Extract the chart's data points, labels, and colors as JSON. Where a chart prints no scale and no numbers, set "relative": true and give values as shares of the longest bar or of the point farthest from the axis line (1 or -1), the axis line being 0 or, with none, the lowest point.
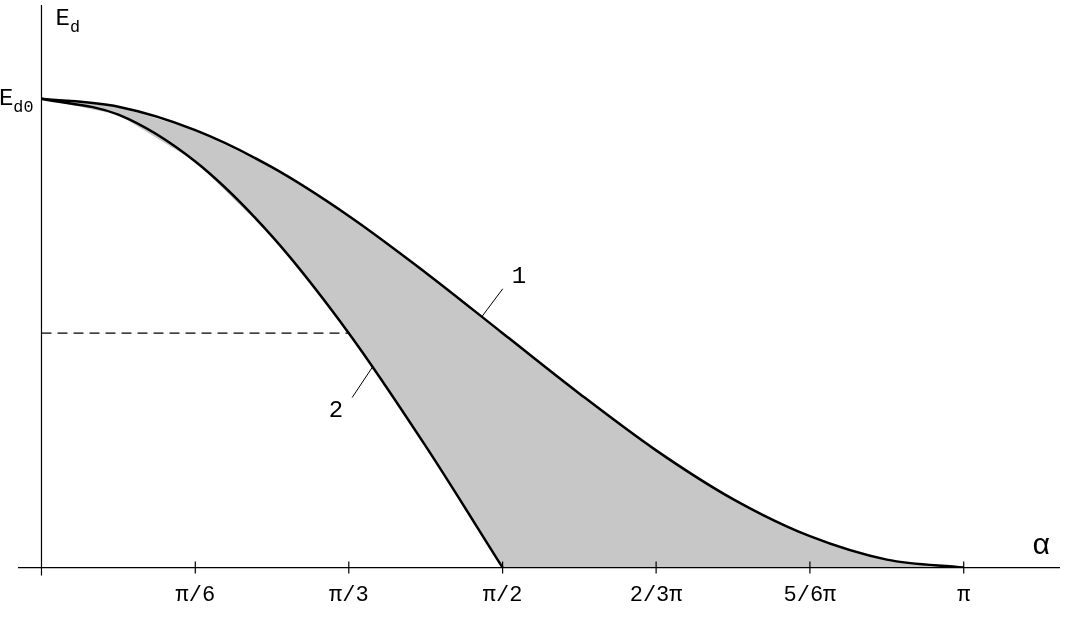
{
  "chart_data": {
    "type": "line",
    "xlabel": "α",
    "ylabel": "E$_{d}$",
    "relative": true,
    "x": [
      0,
      0.262,
      0.524,
      0.785,
      1.047,
      1.309,
      1.571,
      1.833,
      2.094,
      2.356,
      2.618,
      2.88,
      3.142
    ],
    "xlim": [
      -0.08,
      3.47
    ],
    "xticks": [
      {
        "value": 0.524,
        "label": "π/6"
      },
      {
        "value": 1.047,
        "label": "π/3"
      },
      {
        "value": 1.571,
        "label": "π/2"
      },
      {
        "value": 2.094,
        "label": "2/3π"
      },
      {
        "value": 2.618,
        "label": "5/6π"
      },
      {
        "value": 3.142,
        "label": "π"
      }
    ],
    "series": [
      {
        "color": "#000000",
        "values": [
          1,
          0.983,
          0.933,
          0.854,
          0.75,
          0.629,
          0.5,
          0.371,
          0.25,
          0.146,
          0.067,
          0.017,
          0
        ],
        "upper": [
          1,
          0.983,
          0.933,
          0.854,
          0.75,
          0.629,
          0.5,
          0.371,
          0.25,
          0.146,
          0.067,
          0.017,
          0
        ],
        "lower": [
          1,
          0.966,
          0.866,
          0.707,
          0.5,
          0.259,
          0,
          0,
          0,
          0,
          0,
          0,
          0
        ]
      },
      {
        "color": "#000000",
        "values": [
          1,
          0.966,
          0.866,
          0.707,
          0.5,
          0.259,
          0,
          null,
          null,
          null,
          null,
          null,
          null
        ]
      }
    ],
    "ref_lines": [
      {
        "axis": "y",
        "value": 0.5,
        "line_style": "dashed"
      }
    ],
    "annotations": [
      {
        "text": "E$_{d0}$",
        "x": 0,
        "y": 1
      },
      {
        "text": "1",
        "x": 1.5,
        "y": 0.535
      },
      {
        "text": "2",
        "x": 1.13,
        "y": 0.43
      }
    ],
    "grid": false,
    "legend": false,
    "marker": "none",
    "line_style": "solid"
  }
}
